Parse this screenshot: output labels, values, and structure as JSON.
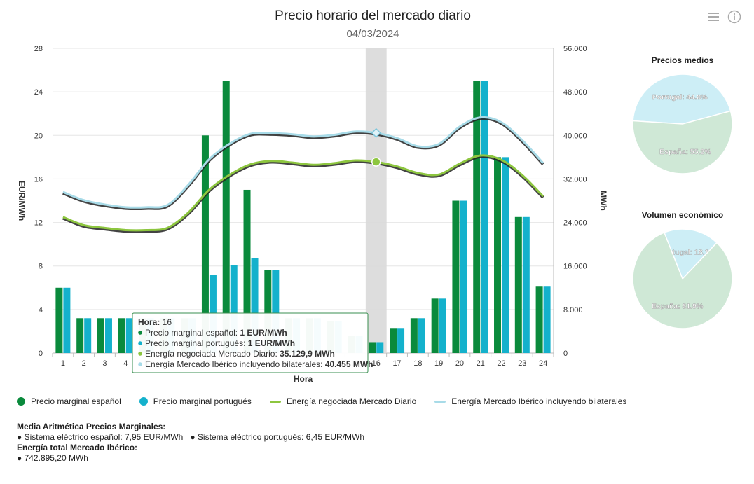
{
  "header": {
    "title": "Precio horario del mercado diario",
    "date": "04/03/2024"
  },
  "toolbar": {
    "menu_icon": "hamburger-menu-icon",
    "info_icon": "info-icon"
  },
  "colors": {
    "spain": "#0a8a3c",
    "portugal": "#14b1cc",
    "energy_md": "#8dc63f",
    "energy_iberico": "#a8dbe8",
    "highlight": "#d9d9d9",
    "pie_spain": "#cfe8d6",
    "pie_portugal": "#cdeef6"
  },
  "chart_data": {
    "type": "bar",
    "title": "",
    "xlabel": "Hora",
    "ylabel": "EUR/MWh",
    "ylabel_right": "MWh",
    "categories": [
      "1",
      "2",
      "3",
      "4",
      "5",
      "6",
      "7",
      "8",
      "9",
      "10",
      "11",
      "12",
      "13",
      "14",
      "15",
      "16",
      "17",
      "18",
      "19",
      "20",
      "21",
      "22",
      "23",
      "24"
    ],
    "ylim": [
      0,
      28
    ],
    "yticks": [
      "0",
      "4",
      "8",
      "12",
      "16",
      "20",
      "24",
      "28"
    ],
    "ylim_right": [
      0,
      56000
    ],
    "yticks_right": [
      "0",
      "8.000",
      "16.000",
      "24.000",
      "32.000",
      "40.000",
      "48.000",
      "56.000"
    ],
    "highlight_hour": "16",
    "grid": true,
    "legend_position": "bottom-left",
    "series": [
      {
        "name": "Precio marginal español",
        "type": "bar",
        "axis": "left",
        "values": [
          6,
          3.2,
          3.2,
          3.2,
          3.2,
          3.2,
          3.2,
          20,
          25,
          15,
          7.6,
          3.2,
          3.2,
          2.9,
          1.6,
          1,
          2.3,
          3.2,
          5,
          14,
          25,
          18,
          12.5,
          6.1
        ]
      },
      {
        "name": "Precio marginal portugués",
        "type": "bar",
        "axis": "left",
        "values": [
          6,
          3.2,
          3.2,
          3.2,
          3.2,
          3.2,
          3.2,
          7.2,
          8.1,
          8.7,
          7.6,
          3.2,
          3.2,
          2.9,
          1.6,
          1,
          2.3,
          3.2,
          5,
          14,
          25,
          18,
          12.5,
          6.1
        ]
      },
      {
        "name": "Energía negociada Mercado Diario",
        "type": "line",
        "axis": "right",
        "values": [
          25000,
          23500,
          23000,
          22600,
          22600,
          23000,
          25800,
          30000,
          32800,
          34700,
          35300,
          35000,
          34600,
          34900,
          35400,
          35130,
          34300,
          33100,
          32800,
          34800,
          36300,
          35500,
          32700,
          28800
        ]
      },
      {
        "name": "Energía Mercado Ibérico incluyendo bilaterales",
        "type": "line",
        "axis": "right",
        "values": [
          29600,
          28100,
          27300,
          26800,
          26800,
          27200,
          30900,
          35600,
          38500,
          40300,
          40400,
          40200,
          39800,
          40100,
          40700,
          40455,
          39500,
          38000,
          38400,
          41600,
          43300,
          42400,
          39100,
          34900
        ]
      }
    ]
  },
  "tooltip": {
    "title_label": "Hora:",
    "title_value": "16",
    "rows": [
      {
        "label": "Precio marginal español:",
        "value": "1 EUR/MWh"
      },
      {
        "label": "Precio marginal portugués:",
        "value": "1 EUR/MWh"
      },
      {
        "label": "Energía negociada Mercado Diario:",
        "value": "35.129,9 MWh"
      },
      {
        "label": "Energía Mercado Ibérico incluyendo bilaterales:",
        "value": "40.455 MWh"
      }
    ]
  },
  "legend": [
    {
      "label": "Precio marginal español"
    },
    {
      "label": "Precio marginal portugués"
    },
    {
      "label": "Energía negociada Mercado Diario"
    },
    {
      "label": "Energía Mercado Ibérico incluyendo bilaterales"
    }
  ],
  "pies": [
    {
      "title": "Precios medios",
      "slices": [
        {
          "label": "Portugal: 44.8%",
          "value": 44.8
        },
        {
          "label": "España: 55.2%",
          "value": 55.2
        }
      ]
    },
    {
      "title": "Volumen económico",
      "slices": [
        {
          "label": "Portugal: 18.1%",
          "value": 18.1
        },
        {
          "label": "España: 81.9%",
          "value": 81.9
        }
      ]
    }
  ],
  "stats": {
    "avg_title": "Media Aritmética Precios Marginales:",
    "avg_line": "● Sistema eléctrico español: 7,95 EUR/MWh   ● Sistema eléctrico portugués: 6,45 EUR/MWh",
    "total_title": "Energía total Mercado Ibérico:",
    "total_line": "● 742.895,20 MWh"
  }
}
